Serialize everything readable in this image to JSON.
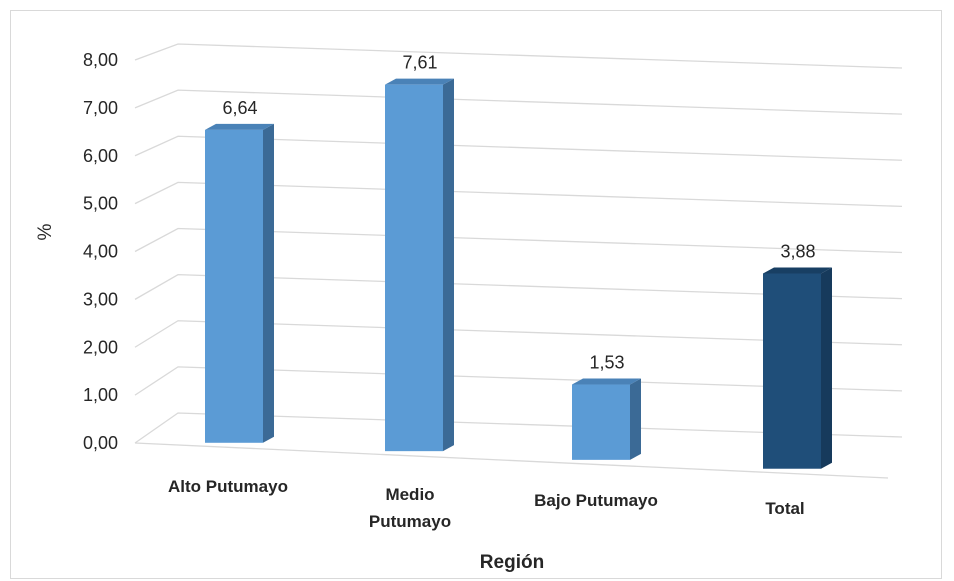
{
  "chart_data": {
    "type": "bar",
    "categories": [
      "Alto Putumayo",
      "Medio Putumayo",
      "Bajo Putumayo",
      "Total"
    ],
    "category_lines": [
      [
        "Alto Putumayo"
      ],
      [
        "Medio",
        "Putumayo"
      ],
      [
        "Bajo Putumayo"
      ],
      [
        "Total"
      ]
    ],
    "values": [
      6.64,
      7.61,
      1.53,
      3.88
    ],
    "value_labels": [
      "6,64",
      "7,61",
      "1,53",
      "3,88"
    ],
    "yticks": [
      "0,00",
      "1,00",
      "2,00",
      "3,00",
      "4,00",
      "5,00",
      "6,00",
      "7,00",
      "8,00"
    ],
    "ylim": [
      0,
      8
    ],
    "xlabel": "Región",
    "ylabel": "%",
    "grid": true,
    "style": "3d-column",
    "colors": {
      "bar_front": "#5b9bd5",
      "bar_side": "#3b6a96",
      "bar_top": "#4a82b7",
      "total_front": "#1f4e79",
      "total_side": "#163a5c",
      "total_top": "#183f63"
    },
    "highlight_category": "Total"
  }
}
